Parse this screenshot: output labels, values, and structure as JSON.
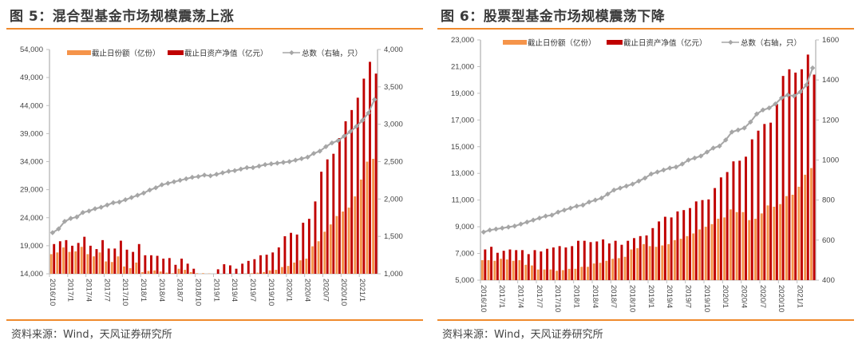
{
  "colors": {
    "shares": "#f5944a",
    "nav": "#c00000",
    "count": "#a6a6a6",
    "rule": "#f08a2c"
  },
  "panels": [
    {
      "title": "图 5：混合型基金市场规模震荡上涨",
      "source": "资料来源：Wind，天风证券研究所"
    },
    {
      "title": "图 6：股票型基金市场规模震荡下降",
      "source": "资料来源：Wind，天风证券研究所"
    }
  ],
  "chart_data": [
    {
      "type": "bar",
      "title": "图 5：混合型基金市场规模震荡上涨",
      "legend": [
        "截止日份额（亿份）",
        "截止日资产净值（亿元）",
        "总数（右轴，只）"
      ],
      "legend_position": "top",
      "x_tick_labels": [
        "2016/10",
        "2017/1",
        "2017/4",
        "2017/7",
        "2017/10",
        "2018/1",
        "2018/4",
        "2018/7",
        "2018/10",
        "2019/1",
        "2019/4",
        "2019/7",
        "2019/10",
        "2020/1",
        "2020/4",
        "2020/7",
        "2020/10",
        "2021/1"
      ],
      "y_left": {
        "ticks": [
          "14,000",
          "19,000",
          "24,000",
          "29,000",
          "34,000",
          "39,000",
          "44,000",
          "49,000",
          "54,000"
        ],
        "min": 14000,
        "max": 54000
      },
      "y_right": {
        "ticks": [
          "1,000",
          "1,500",
          "2,000",
          "2,500",
          "3,000",
          "3,500",
          "4,000"
        ],
        "min": 1000,
        "max": 4000
      },
      "n_points": 54,
      "series": [
        {
          "name": "截止日份额（亿份）",
          "axis": "left",
          "type": "bar",
          "values": [
            17500,
            17800,
            18700,
            17900,
            18000,
            18800,
            17500,
            17100,
            17800,
            16200,
            16100,
            17100,
            15300,
            15000,
            16000,
            14300,
            14500,
            14600,
            14400,
            14200,
            14100,
            14900,
            14700,
            14300,
            14100,
            14100,
            14050,
            14000,
            14000,
            14000,
            14000,
            14000,
            14050,
            14100,
            14200,
            14300,
            14600,
            14700,
            15200,
            15400,
            16000,
            16400,
            16700,
            18900,
            19800,
            21500,
            22800,
            24300,
            25100,
            25800,
            27800,
            30800,
            34000,
            34500
          ]
        },
        {
          "name": "截止日资产净值（亿元）",
          "axis": "left",
          "type": "bar",
          "values": [
            19300,
            19800,
            20000,
            19000,
            19500,
            20600,
            19000,
            18400,
            20000,
            18500,
            18500,
            19900,
            18300,
            17900,
            19300,
            17300,
            17300,
            17200,
            16700,
            16800,
            15600,
            16700,
            15800,
            14900,
            13800,
            13500,
            13700,
            14800,
            15700,
            15500,
            14900,
            15800,
            16300,
            16600,
            17300,
            17400,
            17800,
            18700,
            20700,
            21300,
            21000,
            23100,
            23800,
            26900,
            32200,
            34400,
            35400,
            38200,
            41200,
            43200,
            45400,
            48800,
            51800,
            49700
          ]
        },
        {
          "name": "总数（右轴，只）",
          "axis": "right",
          "type": "line",
          "values": [
            1550,
            1600,
            1700,
            1740,
            1760,
            1820,
            1840,
            1870,
            1890,
            1920,
            1950,
            1960,
            1990,
            2020,
            2050,
            2080,
            2120,
            2150,
            2190,
            2210,
            2230,
            2250,
            2270,
            2290,
            2300,
            2320,
            2310,
            2330,
            2350,
            2370,
            2380,
            2400,
            2420,
            2420,
            2440,
            2460,
            2470,
            2480,
            2490,
            2500,
            2520,
            2540,
            2560,
            2610,
            2640,
            2700,
            2750,
            2780,
            2840,
            2900,
            2970,
            3050,
            3150,
            3330
          ]
        }
      ]
    },
    {
      "type": "bar",
      "title": "图 6：股票型基金市场规模震荡下降",
      "legend": [
        "截止日份额（亿份）",
        "截止日资产净值（亿元）",
        "总数（右轴，只）"
      ],
      "legend_position": "top",
      "x_tick_labels": [
        "2016/10",
        "2017/1",
        "2017/4",
        "2017/7",
        "2017/10",
        "2018/1",
        "2018/4",
        "2018/7",
        "2018/10",
        "2019/1",
        "2019/4",
        "2019/7",
        "2019/10",
        "2020/1",
        "2020/4",
        "2020/7",
        "2020/10",
        "2021/1"
      ],
      "y_left": {
        "ticks": [
          "5,000",
          "7,000",
          "9,000",
          "11,000",
          "13,000",
          "15,000",
          "17,000",
          "19,000",
          "21,000",
          "23,000"
        ],
        "min": 5000,
        "max": 23000
      },
      "y_right": {
        "ticks": [
          "400",
          "600",
          "800",
          "1000",
          "1200",
          "1400",
          "1600"
        ],
        "min": 400,
        "max": 1600
      },
      "n_points": 54,
      "series": [
        {
          "name": "截止日份额（亿份）",
          "axis": "left",
          "type": "bar",
          "values": [
            6500,
            6500,
            6450,
            6600,
            6550,
            6450,
            6500,
            6150,
            6100,
            5800,
            5800,
            5800,
            5700,
            5750,
            5850,
            5850,
            6000,
            6000,
            6250,
            6300,
            6450,
            6600,
            6650,
            6750,
            7300,
            7400,
            7700,
            7550,
            7500,
            7600,
            7700,
            8000,
            8100,
            8300,
            8500,
            8800,
            9000,
            9200,
            9600,
            9700,
            10300,
            10100,
            10100,
            9500,
            9600,
            10000,
            10600,
            10500,
            10700,
            11300,
            11400,
            12000,
            12900,
            13400
          ]
        },
        {
          "name": "截止日资产净值（亿元）",
          "axis": "left",
          "type": "bar",
          "values": [
            7300,
            7500,
            7050,
            7200,
            7300,
            7250,
            7250,
            6950,
            7250,
            7150,
            7350,
            7450,
            7550,
            7450,
            7550,
            7950,
            7950,
            7850,
            7900,
            8050,
            7750,
            7950,
            7650,
            7950,
            8150,
            8300,
            8350,
            8900,
            9400,
            9750,
            9700,
            10150,
            10250,
            10400,
            10900,
            11000,
            11050,
            11900,
            12700,
            13100,
            13900,
            13950,
            14250,
            15550,
            16200,
            16700,
            16800,
            18200,
            20300,
            20800,
            20550,
            20800,
            21900,
            20400
          ]
        },
        {
          "name": "总数（右轴，只）",
          "axis": "right",
          "type": "line",
          "values": [
            640,
            650,
            655,
            660,
            665,
            670,
            680,
            690,
            700,
            710,
            720,
            725,
            740,
            750,
            760,
            770,
            775,
            790,
            800,
            810,
            830,
            850,
            860,
            870,
            880,
            895,
            910,
            930,
            940,
            950,
            960,
            965,
            980,
            1000,
            1010,
            1020,
            1040,
            1060,
            1070,
            1100,
            1140,
            1150,
            1160,
            1190,
            1230,
            1250,
            1260,
            1280,
            1310,
            1325,
            1320,
            1340,
            1375,
            1460
          ]
        }
      ]
    }
  ]
}
